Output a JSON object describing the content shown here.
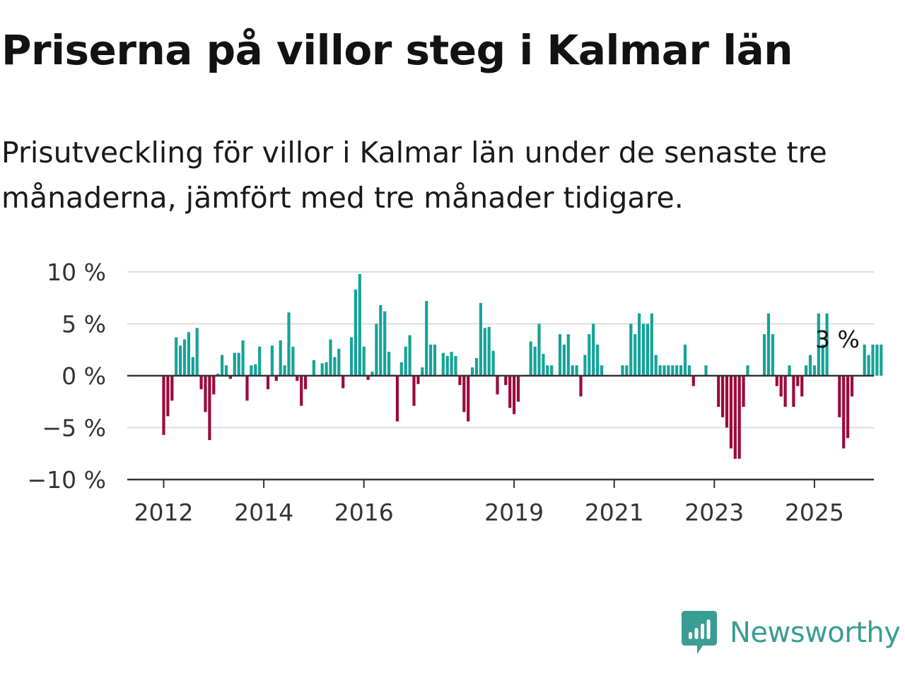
{
  "title": "Priserna på villor steg i Kalmar län",
  "subtitle": "Prisutveckling för villor i Kalmar län under de senaste tre månaderna, jämfört med tre månader tidigare.",
  "brand": {
    "name": "Newsworthy",
    "color": "#3a9d93",
    "icon": "newsworthy-logo-icon"
  },
  "colors": {
    "positive": "#16a398",
    "negative": "#9c0a3e",
    "grid": "#dddddd",
    "axis": "#333333"
  },
  "chart_data": {
    "type": "bar",
    "title": "Priserna på villor steg i Kalmar län",
    "xlabel": "",
    "ylabel": "",
    "ylim": [
      -10,
      10
    ],
    "y_ticks": [
      10,
      5,
      0,
      -5,
      -10
    ],
    "y_tick_labels": [
      "10 %",
      "5 %",
      "0 %",
      "−5 %",
      "−10 %"
    ],
    "x_tick_labels": [
      "2012",
      "2014",
      "2016",
      "2019",
      "2021",
      "2023",
      "2025"
    ],
    "x_ticks": [
      "2012-01",
      "2014-01",
      "2016-01",
      "2019-01",
      "2021-01",
      "2023-01",
      "2025-01"
    ],
    "grid": true,
    "annotation": {
      "text": "3 %",
      "x": "2025-06",
      "y": 3
    },
    "start": "2012-01",
    "values": [
      -5.7,
      -3.9,
      -2.4,
      3.7,
      2.9,
      3.5,
      4.2,
      1.8,
      4.6,
      -1.3,
      -3.5,
      -6.2,
      -1.8,
      0.2,
      2.0,
      1.0,
      -0.3,
      2.2,
      2.2,
      3.4,
      -2.4,
      1.0,
      1.1,
      2.8,
      0,
      -1.3,
      2.9,
      -0.5,
      3.4,
      1.0,
      6.1,
      2.8,
      -0.5,
      -2.9,
      -1.3,
      0,
      1.5,
      0,
      1.2,
      1.3,
      3.5,
      1.8,
      2.6,
      -1.2,
      0,
      3.7,
      8.3,
      9.8,
      2.8,
      -0.4,
      0.4,
      5.0,
      6.8,
      6.2,
      2.3,
      0.1,
      -4.4,
      1.3,
      2.8,
      3.9,
      -2.9,
      -0.8,
      0.8,
      7.2,
      3.0,
      3.0,
      0,
      2.2,
      1.9,
      2.3,
      1.9,
      -0.9,
      -3.5,
      -4.4,
      0.8,
      1.7,
      7.0,
      4.6,
      4.7,
      2.4,
      -1.8,
      0,
      -0.9,
      -3.1,
      -3.7,
      -2.5,
      0,
      0.1,
      3.3,
      2.8,
      5.0,
      2.1,
      1.0,
      1.0,
      0,
      4.0,
      3.0,
      4.0,
      1.0,
      1.0,
      -2.0,
      2.0,
      4.0,
      5.0,
      3.0,
      1.0,
      0,
      0,
      0,
      0,
      1.0,
      1.0,
      5.0,
      4.0,
      6.0,
      5.0,
      5.0,
      6.0,
      2.0,
      1.0,
      1.0,
      1.0,
      1.0,
      1.0,
      1.0,
      3.0,
      1.0,
      -1.0,
      0,
      0,
      1.0,
      0,
      0,
      -3.0,
      -4.0,
      -5.0,
      -7.0,
      -8.0,
      -8.0,
      -3.0,
      1.0,
      0,
      0,
      0,
      4.0,
      6.0,
      4.0,
      -1.0,
      -2.0,
      -3.0,
      1.0,
      -3.0,
      -1.0,
      -2.0,
      1.0,
      2.0,
      1.0,
      6.0,
      3.0,
      6.0,
      0,
      0,
      -4.0,
      -7.0,
      -6.0,
      -2.0,
      0,
      0,
      3.0,
      2.0,
      3.0,
      3.0,
      3.0
    ]
  }
}
